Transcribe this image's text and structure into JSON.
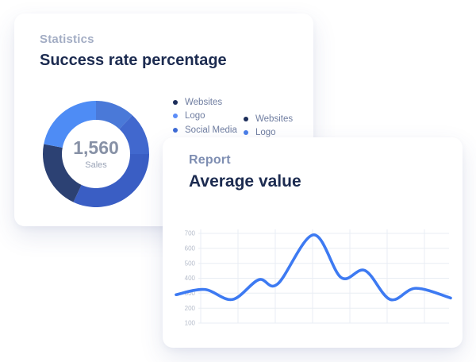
{
  "stats_card": {
    "eyebrow": "Statistics",
    "title": "Success rate percentage",
    "center_value": "1,560",
    "center_label": "Sales",
    "legend_col1": [
      {
        "label": "Websites",
        "color": "#1c2d5a"
      },
      {
        "label": "Logo",
        "color": "#5c8df8"
      },
      {
        "label": "Social Media",
        "color": "#3e6bd5"
      }
    ],
    "legend_col2": [
      {
        "label": "Websites",
        "color": "#1c2d5a"
      },
      {
        "label": "Logo",
        "color": "#4a7de8"
      }
    ]
  },
  "report_card": {
    "eyebrow": "Report",
    "title": "Average value"
  },
  "colors": {
    "accent_line": "#3d7af2",
    "heading": "#1c2b50",
    "grid": "#e9edf4"
  },
  "chart_data": [
    {
      "type": "pie",
      "title": "Success rate percentage",
      "donut": true,
      "center_value": "1,560",
      "center_label": "Sales",
      "legend_position": "right",
      "segments": [
        {
          "label": "Social Media",
          "value": 12,
          "color": "#4a79d8"
        },
        {
          "label": "Logo 2",
          "value": 13,
          "color": "#4168ce"
        },
        {
          "label": "Websites 2",
          "value": 32,
          "color": "#3a5ec4"
        },
        {
          "label": "Websites",
          "value": 21,
          "color": "#2c4173"
        },
        {
          "label": "Logo",
          "value": 22,
          "color": "#4e8cf5"
        }
      ]
    },
    {
      "type": "line",
      "title": "Average value",
      "ylim": [
        100,
        700
      ],
      "yticks": [
        700,
        600,
        500,
        400,
        300,
        200,
        100
      ],
      "grid": true,
      "legend": "none",
      "line_color": "#3d7af2",
      "line_width": 3.6,
      "points": [
        {
          "x_pct": 0,
          "y": 290
        },
        {
          "x_pct": 10.4,
          "y": 325
        },
        {
          "x_pct": 20.5,
          "y": 258
        },
        {
          "x_pct": 30.1,
          "y": 390
        },
        {
          "x_pct": 37.0,
          "y": 362
        },
        {
          "x_pct": 50.0,
          "y": 690
        },
        {
          "x_pct": 60.1,
          "y": 405
        },
        {
          "x_pct": 68.8,
          "y": 452
        },
        {
          "x_pct": 78.0,
          "y": 258
        },
        {
          "x_pct": 87.3,
          "y": 333
        },
        {
          "x_pct": 100,
          "y": 268
        }
      ]
    }
  ]
}
